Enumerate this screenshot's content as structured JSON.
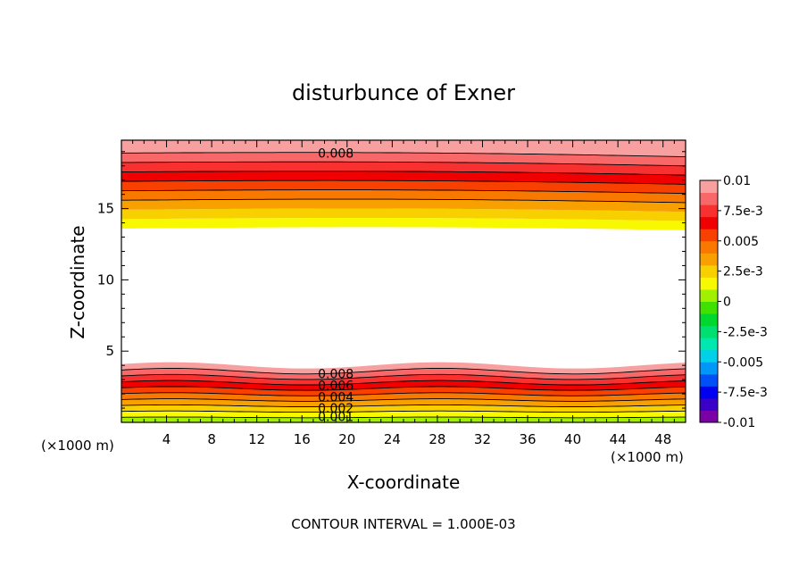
{
  "chart_data": {
    "type": "heatmap",
    "subtype": "filled-contour",
    "title": "disturbunce of Exner",
    "xlabel": "X-coordinate",
    "ylabel": "Z-coordinate",
    "x_unit": "(×1000 m)",
    "z_unit": "(×1000 m)",
    "xlim": [
      0,
      50
    ],
    "ylim": [
      0,
      19.8
    ],
    "x_ticks": [
      4,
      8,
      12,
      16,
      20,
      24,
      28,
      32,
      36,
      40,
      44,
      48
    ],
    "y_ticks": [
      5,
      10,
      15
    ],
    "footer": "CONTOUR INTERVAL = 1.000E-03",
    "contour_interval": 0.001,
    "colorbar": {
      "range": [
        -0.01,
        0.01
      ],
      "tick_values": [
        0.01,
        0.0075,
        0.005,
        0.0025,
        0,
        -0.0025,
        -0.005,
        -0.0075,
        -0.01
      ],
      "tick_labels": [
        "0.01",
        "7.5e-3",
        "0.005",
        "2.5e-3",
        "0",
        "-2.5e-3",
        "-0.005",
        "-7.5e-3",
        "-0.01"
      ],
      "colors": [
        "#7a00a8",
        "#3a00c8",
        "#0000f0",
        "#0050f8",
        "#0098f8",
        "#00d0e8",
        "#00e8b0",
        "#00e070",
        "#00d830",
        "#40e000",
        "#a0f000",
        "#f8f800",
        "#f8d000",
        "#f8a000",
        "#f87800",
        "#f84000",
        "#f00000",
        "#f83030",
        "#f86868",
        "#f8a0a0"
      ]
    },
    "contour_labels": [
      {
        "text": "0.008",
        "x": 19,
        "z": 18.9
      },
      {
        "text": "0.008",
        "x": 19,
        "z": 3.4
      },
      {
        "text": "0.006",
        "x": 19,
        "z": 2.6
      },
      {
        "text": "0.004",
        "x": 19,
        "z": 1.8
      },
      {
        "text": "0.002",
        "x": 19,
        "z": 1.0
      },
      {
        "text": "0.001",
        "x": 19,
        "z": 0.4
      }
    ],
    "upper_band_levels": [
      0.001,
      0.002,
      0.003,
      0.004,
      0.005,
      0.006,
      0.007,
      0.008,
      0.009
    ],
    "lower_band_levels": [
      0.01,
      0.009,
      0.008,
      0.007,
      0.006,
      0.005,
      0.004,
      0.003,
      0.002,
      0.001
    ]
  }
}
